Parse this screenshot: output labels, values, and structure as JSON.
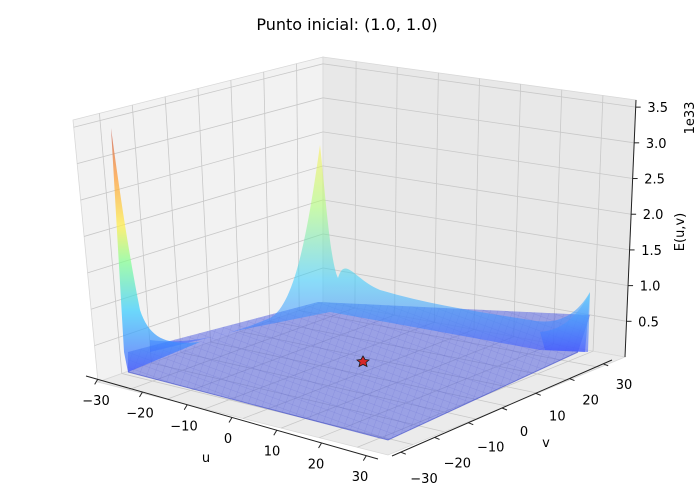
{
  "chart_data": {
    "type": "surface3d",
    "title": "Punto inicial: (1.0, 1.0)",
    "xlabel": "u",
    "ylabel": "v",
    "zlabel": "E(u,v)",
    "z_offset_label": "1e33",
    "xlim": [
      -30,
      30
    ],
    "ylim": [
      -30,
      30
    ],
    "zlim": [
      0,
      3.6
    ],
    "x_ticks": [
      "−30",
      "−20",
      "−10",
      "0",
      "10",
      "20",
      "30"
    ],
    "y_ticks": [
      "−30",
      "−20",
      "−10",
      "0",
      "10",
      "20",
      "30"
    ],
    "z_ticks": [
      "0.5",
      "1.0",
      "1.5",
      "2.0",
      "2.5",
      "3.0",
      "3.5"
    ],
    "colormap": "jet",
    "surface_alpha": 0.5,
    "marker": {
      "u": 1.0,
      "v": 1.0,
      "symbol": "star",
      "color": "#d62728"
    },
    "grid": true
  }
}
